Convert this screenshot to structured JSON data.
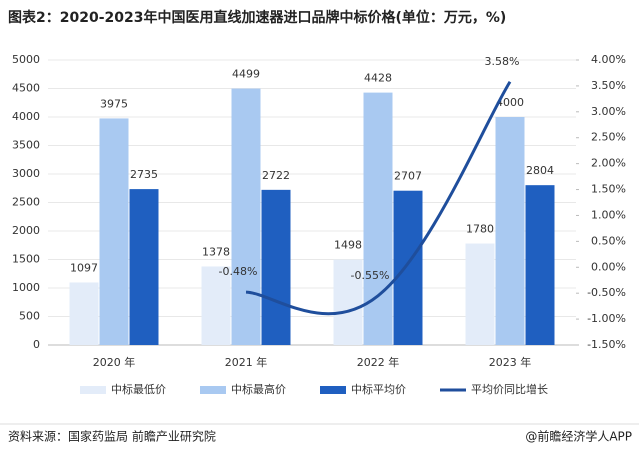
{
  "chart_data": {
    "type": "bar",
    "title": "图表2：2020-2023年中国医用直线加速器进口品牌中标价格(单位：万元，%)",
    "categories": [
      "2020 年",
      "2021 年",
      "2022 年",
      "2023 年"
    ],
    "series": [
      {
        "name": "中标最低价",
        "color": "#e3ecf9",
        "values": [
          1097,
          1378,
          1498,
          1780
        ]
      },
      {
        "name": "中标最高价",
        "color": "#a9c9f1",
        "values": [
          3975,
          4499,
          4428,
          4000
        ]
      },
      {
        "name": "中标平均价",
        "color": "#1f5fc0",
        "values": [
          2735,
          2722,
          2707,
          2804
        ]
      },
      {
        "name": "平均价同比增长",
        "color": "#1f4e9c",
        "type": "line",
        "axis": "y2",
        "values": [
          null,
          -0.48,
          -0.55,
          3.58
        ],
        "value_labels": [
          null,
          "-0.48%",
          "-0.55%",
          "3.58%"
        ]
      }
    ],
    "ylim": [
      0,
      5000
    ],
    "yticks": [
      0,
      500,
      1000,
      1500,
      2000,
      2500,
      3000,
      3500,
      4000,
      4500,
      5000
    ],
    "y2lim": [
      -1.5,
      4.0
    ],
    "y2ticks": [
      {
        "value": -1.5,
        "label": "-1.50%"
      },
      {
        "value": -1.0,
        "label": "-1.00%"
      },
      {
        "value": -0.5,
        "label": "-0.50%"
      },
      {
        "value": 0,
        "label": "0.00%"
      },
      {
        "value": 0.5,
        "label": "0.50%"
      },
      {
        "value": 1.0,
        "label": "1.00%"
      },
      {
        "value": 1.5,
        "label": "1.50%"
      },
      {
        "value": 2.0,
        "label": "2.00%"
      },
      {
        "value": 2.5,
        "label": "2.50%"
      },
      {
        "value": 3.0,
        "label": "3.00%"
      },
      {
        "value": 3.5,
        "label": "3.50%"
      },
      {
        "value": 4.0,
        "label": "4.00%"
      }
    ],
    "source": "资料来源：国家药监局 前瞻产业研究院",
    "credit": "@前瞻经济学人APP"
  }
}
